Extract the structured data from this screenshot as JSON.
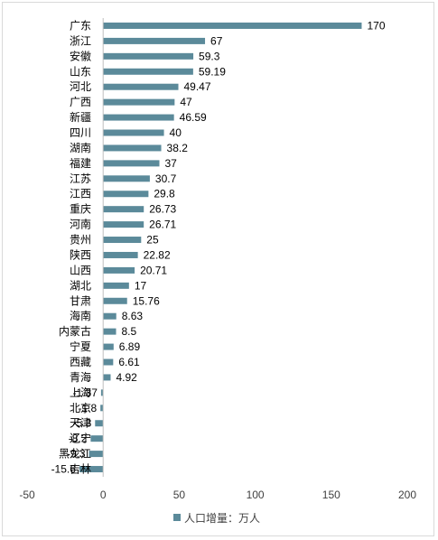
{
  "chart_data": {
    "type": "bar",
    "orientation": "horizontal",
    "categories": [
      "广东",
      "浙江",
      "安徽",
      "山东",
      "河北",
      "广西",
      "新疆",
      "四川",
      "湖南",
      "福建",
      "江苏",
      "江西",
      "重庆",
      "河南",
      "贵州",
      "陕西",
      "山西",
      "湖北",
      "甘肃",
      "海南",
      "内蒙古",
      "宁夏",
      "西藏",
      "青海",
      "上海",
      "北京",
      "天津",
      "辽宁",
      "黑龙江",
      "吉林"
    ],
    "values": [
      170,
      67,
      59.3,
      59.19,
      49.47,
      47,
      46.59,
      40,
      38.2,
      37,
      30.7,
      29.8,
      26.73,
      26.71,
      25,
      22.82,
      20.71,
      17,
      15.76,
      8.63,
      8.5,
      6.89,
      6.61,
      4.92,
      -1.37,
      -1.8,
      -5.3,
      -8.2,
      -9.3,
      -15.6
    ],
    "data_labels": [
      "170",
      "67",
      "59.3",
      "59.19",
      "49.47",
      "47",
      "46.59",
      "40",
      "38.2",
      "37",
      "30.7",
      "29.8",
      "26.73",
      "26.71",
      "25",
      "22.82",
      "20.71",
      "17",
      "15.76",
      "8.63",
      "8.5",
      "6.89",
      "6.61",
      "4.92",
      "-1.37",
      "-1.8",
      "-5.3",
      "-8.2",
      "-9.3",
      "-15.6"
    ],
    "xlim": [
      -50,
      200
    ],
    "xticks": [
      -50,
      0,
      50,
      100,
      150,
      200
    ],
    "grid": false,
    "legend_position": "bottom",
    "series": [
      {
        "name": "人口增量：万人",
        "color": "#5b8a9a"
      }
    ]
  }
}
